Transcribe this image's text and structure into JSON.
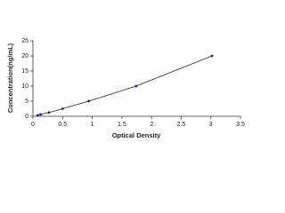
{
  "chart_data": {
    "type": "line",
    "x_label": "Optical Density",
    "y_label": "Concentration(ng/mL)",
    "x": [
      0.08,
      0.13,
      0.27,
      0.5,
      0.94,
      1.74,
      3.02
    ],
    "series": [
      {
        "color": "#1a1a8c",
        "values": [
          0.31,
          0.63,
          1.25,
          2.5,
          5,
          10,
          20
        ]
      }
    ],
    "xlim": [
      0,
      3.5
    ],
    "xticks": [
      0,
      0.5,
      1,
      1.5,
      2,
      2.5,
      3,
      3.5
    ],
    "ylim": [
      0,
      25
    ],
    "yticks": [
      0,
      5,
      10,
      15,
      20,
      25
    ],
    "grid": false
  }
}
